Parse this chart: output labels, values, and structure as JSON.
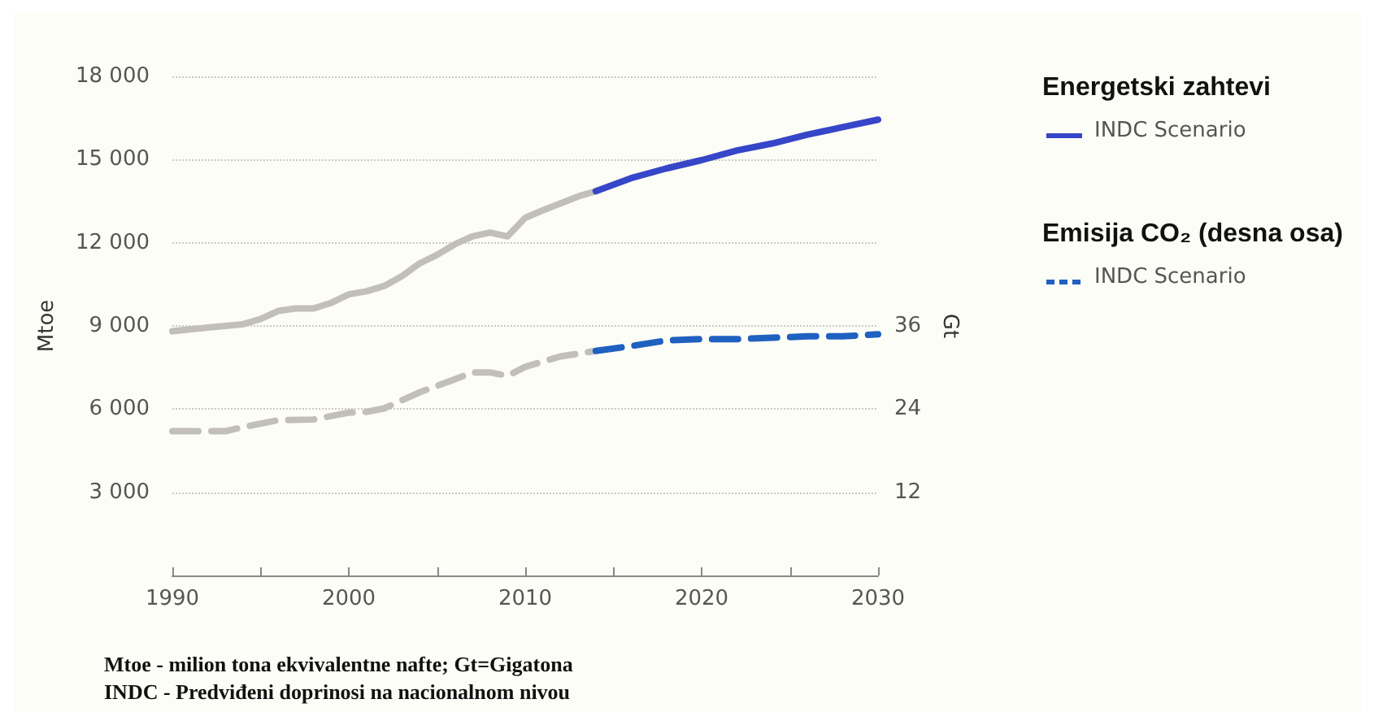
{
  "chart_data": {
    "type": "line",
    "ylabel": "Mtoe",
    "y2label": "Gt",
    "annotations": [
      "Energetski zahtevi",
      "Emisija CO₂ (desna osa)",
      "Mtoe - milion tona ekvivalentne nafte; Gt=Gigatona",
      "INDC - Predviđeni doprinosi na nacionalnom nivou"
    ],
    "series": [
      {
        "color": "#c2beba",
        "line_style": "solid",
        "x": [
          1990,
          1992,
          1994,
          1995,
          1996,
          1997,
          1998,
          1999,
          2000,
          2001,
          2002,
          2003,
          2004,
          2005,
          2006,
          2007,
          2008,
          2009,
          2010,
          2011,
          2012,
          2013,
          2014
        ],
        "values": [
          8810,
          8940,
          9060,
          9250,
          9540,
          9630,
          9630,
          9830,
          10140,
          10250,
          10440,
          10790,
          11250,
          11560,
          11940,
          12230,
          12370,
          12230,
          12900,
          13170,
          13420,
          13670,
          13860
        ]
      },
      {
        "name": "INDC Scenario",
        "color": "#3646c8",
        "line_style": "solid",
        "x": [
          2014,
          2016,
          2018,
          2020,
          2022,
          2024,
          2026,
          2028,
          2030
        ],
        "values": [
          13860,
          14330,
          14680,
          14980,
          15330,
          15580,
          15900,
          16170,
          16440
        ]
      },
      {
        "color": "#c2beba",
        "line_style": "dashed",
        "axis": "y2",
        "x": [
          1990,
          1992,
          1993,
          1994,
          1996,
          1998,
          2000,
          2001,
          2002,
          2004,
          2006,
          2007,
          2008,
          2009,
          2010,
          2012,
          2014
        ],
        "values": [
          20.8,
          20.8,
          20.8,
          21.4,
          22.4,
          22.5,
          23.5,
          23.6,
          24.1,
          26.4,
          28.3,
          29.3,
          29.3,
          28.8,
          30.1,
          31.6,
          32.4
        ]
      },
      {
        "name": "INDC Scenario",
        "color": "#1f60c0",
        "line_style": "dashed",
        "axis": "y2",
        "x": [
          2014,
          2016,
          2018,
          2020,
          2022,
          2024,
          2026,
          2028,
          2030
        ],
        "values": [
          32.4,
          33.1,
          33.9,
          34.1,
          34.1,
          34.3,
          34.5,
          34.5,
          34.8
        ]
      }
    ],
    "xlim": [
      1990,
      2030
    ],
    "xticks": [
      1990,
      {
        "value": 1995,
        "label": null
      },
      2000,
      {
        "value": 2005,
        "label": null
      },
      2010,
      {
        "value": 2015,
        "label": null
      },
      2020,
      {
        "value": 2025,
        "label": null
      },
      2030
    ],
    "ylim": [
      0,
      18000
    ],
    "yticks": [
      {
        "value": 3000,
        "label": "3 000"
      },
      {
        "value": 6000,
        "label": "6 000"
      },
      {
        "value": 9000,
        "label": "9 000"
      },
      {
        "value": 12000,
        "label": "12 000"
      },
      {
        "value": 15000,
        "label": "15 000"
      },
      {
        "value": 18000,
        "label": "18 000"
      }
    ],
    "y2lim": [
      0,
      72
    ],
    "y2ticks": [
      12,
      24,
      36
    ],
    "grid": "y",
    "legend": "right",
    "marker": "none"
  }
}
